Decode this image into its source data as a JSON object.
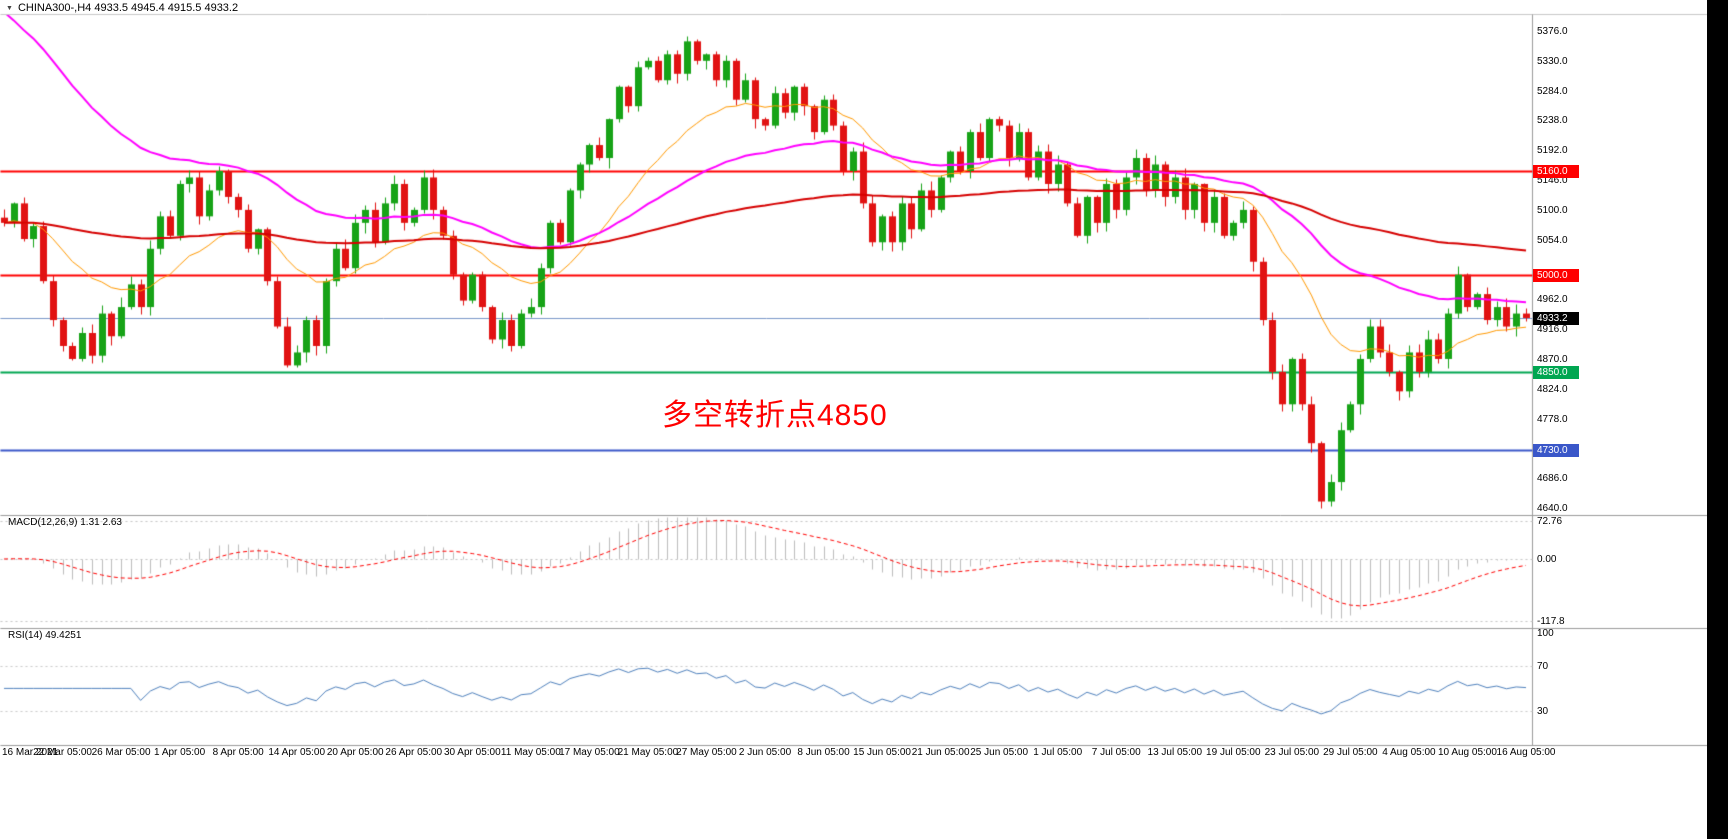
{
  "header": {
    "symbol_line": "CHINA300-,H4  4933.5 4945.4 4915.5 4933.2",
    "dropdown_icon": "▼"
  },
  "chart_data": {
    "type": "candlestick",
    "symbol": "CHINA300-",
    "timeframe": "H4",
    "ohlc_display": {
      "open": "4933.5",
      "high": "4945.4",
      "low": "4915.5",
      "close": "4933.2"
    },
    "y_axis": {
      "min": 4640,
      "max": 5376,
      "tick_interval": 46,
      "ticks": [
        {
          "value": 5376,
          "label": "5376.0"
        },
        {
          "value": 5330,
          "label": "5330.0"
        },
        {
          "value": 5284,
          "label": "5284.0"
        },
        {
          "value": 5238,
          "label": "5238.0"
        },
        {
          "value": 5192,
          "label": "5192.0"
        },
        {
          "value": 5146,
          "label": "5146.0"
        },
        {
          "value": 5100,
          "label": "5100.0"
        },
        {
          "value": 5054,
          "label": "5054.0"
        },
        {
          "value": 4962,
          "label": "4962.0"
        },
        {
          "value": 4916,
          "label": "4916.0"
        },
        {
          "value": 4870,
          "label": "4870.0"
        },
        {
          "value": 4824,
          "label": "4824.0"
        },
        {
          "value": 4778,
          "label": "4778.0"
        },
        {
          "value": 4686,
          "label": "4686.0"
        },
        {
          "value": 4640,
          "label": "4640.0"
        }
      ]
    },
    "x_labels": [
      "16 Mar 2021",
      "22 Mar 05:00",
      "26 Mar 05:00",
      "1 Apr 05:00",
      "8 Apr 05:00",
      "14 Apr 05:00",
      "20 Apr 05:00",
      "26 Apr 05:00",
      "30 Apr 05:00",
      "11 May 05:00",
      "17 May 05:00",
      "21 May 05:00",
      "27 May 05:00",
      "2 Jun 05:00",
      "8 Jun 05:00",
      "15 Jun 05:00",
      "21 Jun 05:00",
      "25 Jun 05:00",
      "1 Jul 05:00",
      "7 Jul 05:00",
      "13 Jul 05:00",
      "19 Jul 05:00",
      "23 Jul 05:00",
      "29 Jul 05:00",
      "4 Aug 05:00",
      "10 Aug 05:00",
      "16 Aug 05:00"
    ],
    "closes": [
      5080,
      5110,
      5055,
      5075,
      4990,
      4930,
      4890,
      4870,
      4910,
      4875,
      4940,
      4905,
      4950,
      4985,
      4950,
      5040,
      5090,
      5060,
      5140,
      5150,
      5090,
      5130,
      5160,
      5120,
      5100,
      5040,
      5070,
      4990,
      4920,
      4860,
      4880,
      4930,
      4890,
      4990,
      5040,
      5010,
      5080,
      5100,
      5050,
      5110,
      5140,
      5080,
      5100,
      5150,
      5100,
      5060,
      5000,
      4960,
      5000,
      4950,
      4900,
      4930,
      4890,
      4940,
      4950,
      5010,
      5080,
      5050,
      5130,
      5170,
      5200,
      5180,
      5240,
      5290,
      5260,
      5320,
      5330,
      5300,
      5340,
      5310,
      5360,
      5330,
      5340,
      5300,
      5330,
      5270,
      5300,
      5240,
      5230,
      5280,
      5250,
      5290,
      5260,
      5220,
      5270,
      5230,
      5160,
      5190,
      5110,
      5050,
      5090,
      5050,
      5110,
      5070,
      5130,
      5100,
      5150,
      5190,
      5160,
      5220,
      5180,
      5240,
      5230,
      5180,
      5220,
      5150,
      5190,
      5140,
      5170,
      5110,
      5060,
      5120,
      5080,
      5140,
      5100,
      5150,
      5180,
      5130,
      5170,
      5120,
      5150,
      5100,
      5140,
      5080,
      5120,
      5060,
      5080,
      5100,
      5020,
      4930,
      4850,
      4800,
      4870,
      4800,
      4740,
      4650,
      4680,
      4760,
      4800,
      4870,
      4920,
      4880,
      4850,
      4820,
      4880,
      4850,
      4900,
      4870,
      4940,
      5000,
      4950,
      4970,
      4930,
      4950,
      4920,
      4940,
      4933.2
    ],
    "candle_colors": {
      "up": "#17a317",
      "down": "#e11212"
    },
    "moving_averages": [
      {
        "name": "fast-ma",
        "period": 18,
        "color": "#ff9900",
        "width": 1,
        "seed": null
      },
      {
        "name": "mid-ma",
        "period": 45,
        "color": "#ff00ff",
        "width": 2,
        "seed": 5420
      },
      {
        "name": "slow-ma",
        "period": 130,
        "color": "#d60000",
        "width": 2,
        "seed": 5080
      }
    ],
    "levels": [
      {
        "value": 5160,
        "label": "5160.0",
        "color": "#ff0000",
        "width": 2
      },
      {
        "value": 5000,
        "label": "5000.0",
        "color": "#ff0000",
        "width": 2
      },
      {
        "value": 4850,
        "label": "4850.0",
        "color": "#00a651",
        "width": 2
      },
      {
        "value": 4730,
        "label": "4730.0",
        "color": "#3a57c9",
        "width": 2
      }
    ],
    "current_price": {
      "value": 4933.2,
      "label": "4933.2",
      "line_color": "#7a97c9",
      "badge_color": "#000000"
    },
    "annotation": {
      "text": "多空转折点4850",
      "color": "#ff0000"
    },
    "macd": {
      "label": "MACD(12,26,9) 1.31 2.63",
      "fast": 12,
      "slow": 26,
      "signal": 9,
      "value": "1.31",
      "signal_value": "2.63",
      "axis_labels": [
        {
          "value": 72.76,
          "label": "72.76"
        },
        {
          "value": 0,
          "label": "0.00"
        },
        {
          "value": -117.8,
          "label": "-117.8"
        }
      ],
      "histogram_color": "#bdbdbd",
      "signal_color": "#ff0000"
    },
    "rsi": {
      "label": "RSI(14) 49.4251",
      "period": 14,
      "value": "49.4251",
      "axis_labels": [
        {
          "value": 100,
          "label": "100"
        },
        {
          "value": 70,
          "label": "70"
        },
        {
          "value": 30,
          "label": "30"
        }
      ],
      "level_lines": [
        70,
        30
      ],
      "line_color": "#4f81bd"
    }
  }
}
